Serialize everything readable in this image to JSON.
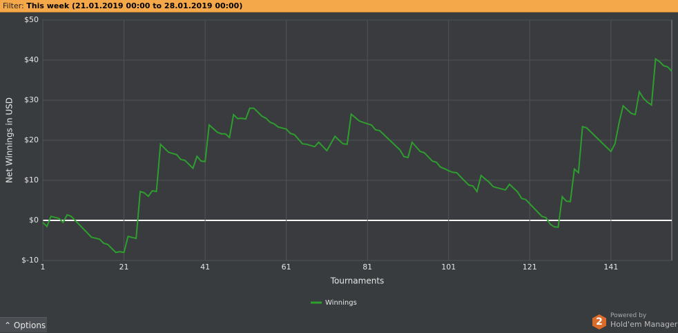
{
  "ui": {
    "filter_label": "Filter:",
    "filter_value": "This week (21.01.2019 00:00 to 28.01.2019 00:00)",
    "options": "Options",
    "logo_number": "2",
    "powered_by": "Powered by",
    "product": "Hold'em Manager"
  },
  "chart_data": {
    "type": "line",
    "x_label": "Tournaments",
    "y_label": "Net Winnings in USD",
    "xlim": [
      1,
      156
    ],
    "xticks": [
      1,
      21,
      41,
      61,
      81,
      101,
      121,
      141
    ],
    "ylim": [
      -10,
      50
    ],
    "yticks": [
      {
        "value": -10,
        "label": "$-10"
      },
      {
        "value": 0,
        "label": "$0"
      },
      {
        "value": 10,
        "label": "$10"
      },
      {
        "value": 20,
        "label": "$20"
      },
      {
        "value": 30,
        "label": "$30"
      },
      {
        "value": 40,
        "label": "$40"
      },
      {
        "value": 50,
        "label": "$50"
      }
    ],
    "grid": true,
    "legend": "bottom",
    "x": [
      1,
      2,
      3,
      5,
      6,
      7,
      8,
      13,
      15,
      16,
      17,
      19,
      20,
      21,
      22,
      24,
      25,
      26,
      27,
      28,
      29,
      30,
      32,
      34,
      35,
      36,
      38,
      39,
      40,
      41,
      42,
      44,
      45,
      46,
      47,
      48,
      49,
      50,
      51,
      52,
      53,
      55,
      56,
      57,
      58,
      59,
      61,
      62,
      63,
      65,
      66,
      68,
      69,
      71,
      73,
      74,
      75,
      76,
      77,
      79,
      81,
      82,
      83,
      84,
      89,
      90,
      91,
      92,
      94,
      95,
      97,
      98,
      99,
      100,
      101,
      102,
      103,
      105,
      106,
      107,
      108,
      109,
      111,
      112,
      115,
      116,
      118,
      119,
      120,
      124,
      125,
      126,
      127,
      128,
      129,
      130,
      131,
      132,
      133,
      134,
      135,
      141,
      142,
      143,
      144,
      146,
      147,
      148,
      149,
      150,
      151,
      152,
      153,
      154,
      155,
      156
    ],
    "series": [
      {
        "name": "Winnings",
        "color": "#2e9e2e",
        "values": [
          -0.5,
          -1.5,
          1,
          0.5,
          -0.5,
          1.4,
          1,
          -4.2,
          -4.7,
          -5.7,
          -6,
          -8,
          -7.8,
          -8,
          -4,
          -4.5,
          7.2,
          6.9,
          6,
          7.4,
          7.2,
          19,
          17,
          16.4,
          15.2,
          15,
          13,
          16,
          14.8,
          14.7,
          23.8,
          22,
          21.6,
          21.6,
          20.7,
          26.4,
          25.4,
          25.5,
          25.3,
          28,
          28,
          26,
          25.5,
          24.5,
          24.1,
          23.3,
          22.8,
          21.7,
          21.4,
          19.1,
          19,
          18.4,
          19.5,
          17.4,
          21,
          20,
          19.1,
          19,
          26.5,
          24.8,
          24.1,
          23.8,
          22.6,
          22.4,
          17.6,
          15.9,
          15.7,
          19.5,
          17.2,
          16.9,
          14.8,
          14.5,
          13.3,
          12.9,
          12.4,
          12,
          11.9,
          9.8,
          8.8,
          8.6,
          7.2,
          11.2,
          9.5,
          8.4,
          7.6,
          9,
          7.1,
          5.5,
          5.2,
          1,
          0.7,
          -0.9,
          -1.6,
          -1.7,
          5.9,
          4.8,
          4.7,
          12.8,
          11.9,
          23.4,
          23.1,
          17.2,
          19.1,
          24.3,
          28.6,
          26.7,
          26.4,
          32.1,
          30.5,
          29.5,
          28.8,
          40.3,
          39.6,
          38.6,
          38.3,
          37.2
        ]
      }
    ]
  }
}
